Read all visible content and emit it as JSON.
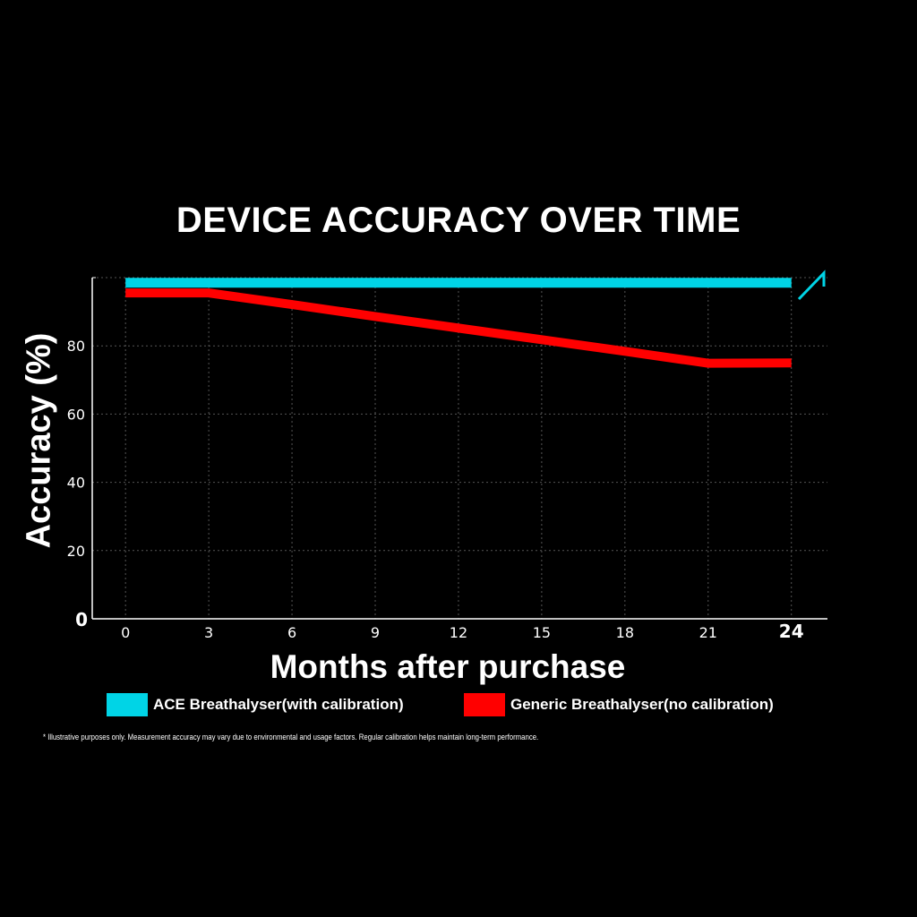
{
  "chart_data": {
    "type": "line",
    "title": "DEVICE ACCURACY OVER TIME",
    "xlabel": "Months after purchase",
    "ylabel": "Accuracy (%)",
    "x": [
      0,
      3,
      6,
      9,
      12,
      15,
      18,
      21,
      24
    ],
    "xticks": [
      "0",
      "3",
      "6",
      "9",
      "12",
      "15",
      "18",
      "21",
      "24"
    ],
    "yticks": [
      "0",
      "20",
      "40",
      "60",
      "80"
    ],
    "xlim": [
      -1.2,
      25.3
    ],
    "ylim": [
      0,
      100
    ],
    "grid": true,
    "legend_position": "bottom",
    "series": [
      {
        "name": "ACE Breathalyser(with calibration)",
        "color": "#00d4e6",
        "values": [
          98.5,
          98.5,
          98.5,
          98.5,
          98.5,
          98.5,
          98.5,
          98.5,
          98.5
        ]
      },
      {
        "name": "Generic Breathalyser(no calibration)",
        "color": "#ff0000",
        "values": [
          95.5,
          95.5,
          92.1,
          88.6,
          85.2,
          81.8,
          78.4,
          74.9,
          75
        ]
      }
    ],
    "annotation_icon": "up-right-arrow-icon",
    "footnote": "*  Illustrative purposes only. Measurement accuracy may vary due to environmental and usage factors. Regular calibration helps maintain long-term performance."
  }
}
